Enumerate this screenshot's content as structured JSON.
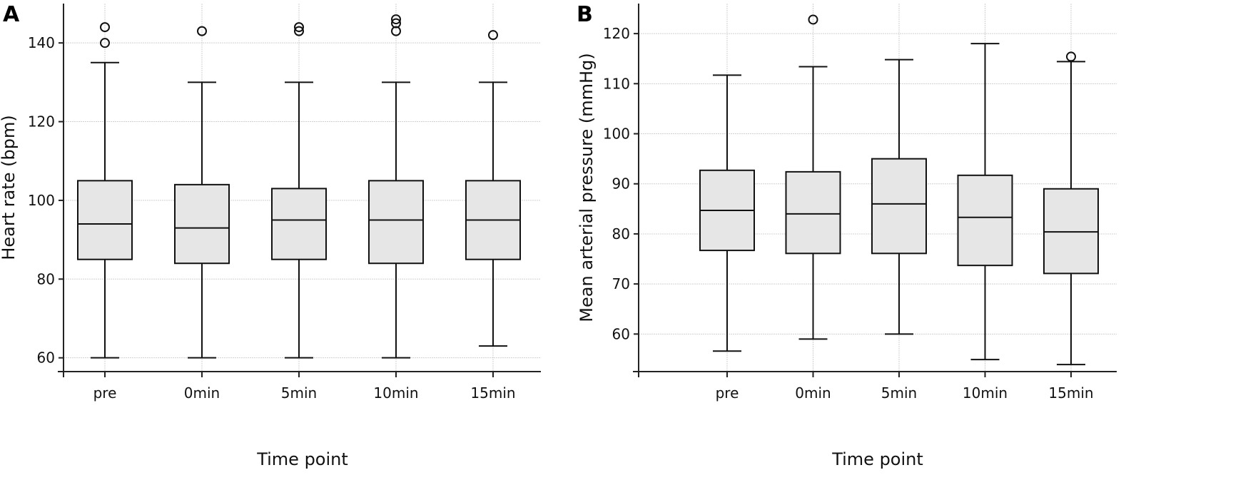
{
  "chart_data": [
    {
      "type": "box",
      "panel_label": "A",
      "title": "",
      "xlabel": "Time point",
      "ylabel": "Heart rate (bpm)",
      "categories": [
        "pre",
        "0min",
        "5min",
        "10min",
        "15min"
      ],
      "ylim": [
        56.5,
        150
      ],
      "yticks": [
        60,
        80,
        100,
        120,
        140
      ],
      "grid": true,
      "boxes": [
        {
          "category": "pre",
          "whisker_low": 60,
          "q1": 85,
          "median": 94,
          "q3": 105,
          "whisker_high": 135,
          "outliers": [
            140,
            144
          ]
        },
        {
          "category": "0min",
          "whisker_low": 60,
          "q1": 84,
          "median": 93,
          "q3": 104,
          "whisker_high": 130,
          "outliers": [
            143
          ]
        },
        {
          "category": "5min",
          "whisker_low": 60,
          "q1": 85,
          "median": 95,
          "q3": 103,
          "whisker_high": 130,
          "outliers": [
            143,
            144
          ]
        },
        {
          "category": "10min",
          "whisker_low": 60,
          "q1": 84,
          "median": 95,
          "q3": 105,
          "whisker_high": 130,
          "outliers": [
            143,
            145,
            146
          ]
        },
        {
          "category": "15min",
          "whisker_low": 63,
          "q1": 85,
          "median": 95,
          "q3": 105,
          "whisker_high": 130,
          "outliers": [
            142
          ]
        }
      ]
    },
    {
      "type": "box",
      "panel_label": "B",
      "title": "",
      "xlabel": "Time point",
      "ylabel": "Mean arterial pressure (mmHg)",
      "categories": [
        "pre",
        "0min",
        "5min",
        "10min",
        "15min"
      ],
      "ylim": [
        52.5,
        126
      ],
      "yticks": [
        60,
        70,
        80,
        90,
        100,
        110,
        120
      ],
      "grid": true,
      "boxes": [
        {
          "category": "pre",
          "whisker_low": 56.6,
          "q1": 76.7,
          "median": 84.7,
          "q3": 92.7,
          "whisker_high": 111.7,
          "outliers": []
        },
        {
          "category": "0min",
          "whisker_low": 59.0,
          "q1": 76.1,
          "median": 84.0,
          "q3": 92.4,
          "whisker_high": 113.4,
          "outliers": [
            122.8
          ]
        },
        {
          "category": "5min",
          "whisker_low": 60.0,
          "q1": 76.1,
          "median": 86.0,
          "q3": 95.0,
          "whisker_high": 114.8,
          "outliers": []
        },
        {
          "category": "10min",
          "whisker_low": 54.9,
          "q1": 73.7,
          "median": 83.3,
          "q3": 91.7,
          "whisker_high": 118.0,
          "outliers": []
        },
        {
          "category": "15min",
          "whisker_low": 53.9,
          "q1": 72.1,
          "median": 80.4,
          "q3": 89.0,
          "whisker_high": 114.4,
          "outliers": [
            115.4
          ]
        }
      ]
    }
  ]
}
